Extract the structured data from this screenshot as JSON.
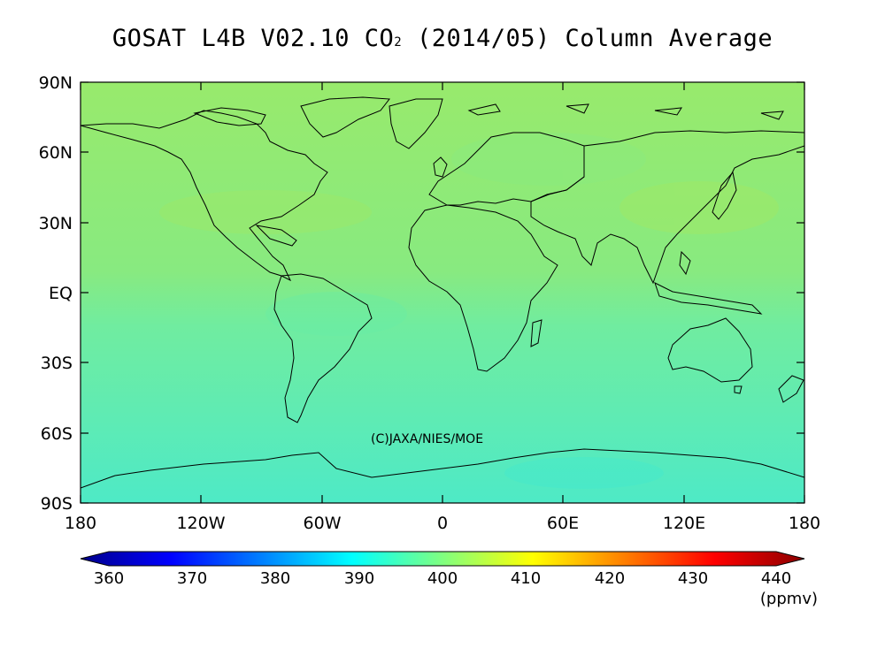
{
  "title": {
    "prefix": "GOSAT L4B V02.10 CO",
    "subscript": "2",
    "suffix": " (2014/05) Column Average"
  },
  "map": {
    "lat_labels": [
      "90N",
      "60N",
      "30N",
      "EQ",
      "30S",
      "60S",
      "90S"
    ],
    "lon_labels": [
      "180",
      "120W",
      "60W",
      "0",
      "60E",
      "120E",
      "180"
    ],
    "copyright": "(C)JAXA/NIES/MOE",
    "projection": "equirectangular",
    "field_colors": {
      "north": "#98ea6c",
      "tropics": "#70eca0",
      "south": "#4eeac6"
    }
  },
  "colorbar": {
    "ticks": [
      "360",
      "370",
      "380",
      "390",
      "400",
      "410",
      "420",
      "430",
      "440"
    ],
    "unit": "(ppmv)",
    "min": 360,
    "max": 440,
    "colors": [
      "#00008b",
      "#0000ff",
      "#0080ff",
      "#00ffff",
      "#80ff80",
      "#ffff00",
      "#ff8000",
      "#ff0000",
      "#8b0000"
    ]
  }
}
